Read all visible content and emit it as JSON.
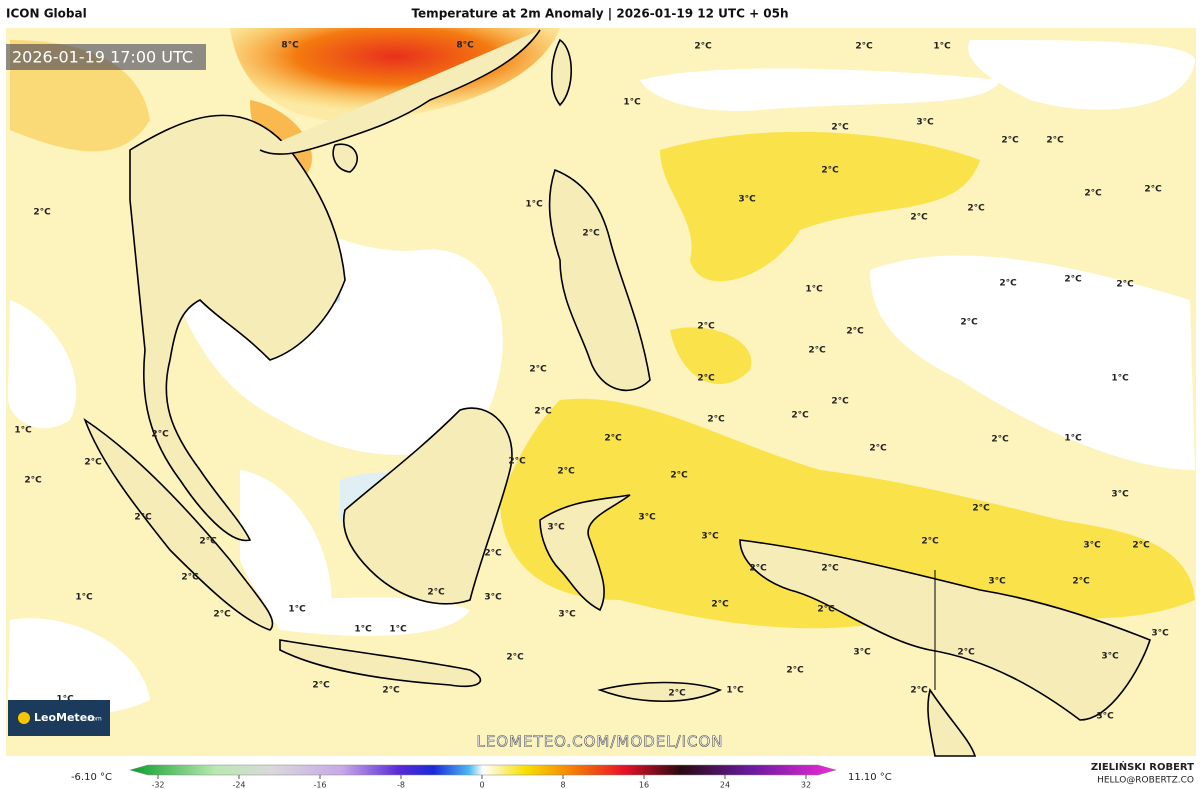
{
  "header": {
    "model": "ICON Global",
    "title": "Temperature at 2m Anomaly | 2026-01-19 12 UTC + 05h"
  },
  "timestamp": "2026-01-19 17:00 UTC",
  "contour_labels": [
    "8°C",
    "8°C",
    "2°C",
    "2°C",
    "1°C",
    "1°C",
    "3°C",
    "2°C",
    "2°C",
    "2°C",
    "2°C",
    "2°C",
    "2°C",
    "3°C",
    "2°C",
    "2°C",
    "1°C",
    "2°C",
    "2°C",
    "1°C",
    "2°C",
    "2°C",
    "2°C",
    "2°C",
    "2°C",
    "2°C",
    "2°C",
    "2°C",
    "2°C",
    "1°C",
    "2°C",
    "2°C",
    "2°C",
    "2°C",
    "1°C",
    "2°C",
    "2°C",
    "2°C",
    "1°C",
    "2°C",
    "2°C",
    "2°C",
    "2°C",
    "2°C",
    "2°C",
    "3°C",
    "2°C",
    "3°C",
    "3°C",
    "2°C",
    "3°C",
    "2°C",
    "2°C",
    "2°C",
    "3°C",
    "2°C",
    "2°C",
    "2°C",
    "2°C",
    "3°C",
    "2°C",
    "2°C",
    "3°C",
    "1°C",
    "1°C",
    "2°C",
    "2°C",
    "2°C",
    "3°C",
    "1°C",
    "1°C",
    "3°C",
    "3°C",
    "2°C",
    "3°C",
    "2°C",
    "2°C",
    "2°C",
    "2°C",
    "2°C",
    "1°C",
    "2°C",
    "1°C",
    "3°C"
  ],
  "watermark": "LEOMETEO.COM/MODEL/ICON",
  "logo": {
    "name": "LeoMeteo",
    "suffix": ".com"
  },
  "author": {
    "name": "ZIELIŃSKI ROBERT",
    "email": "HELLO@ROBERTZ.CO"
  },
  "colorbar": {
    "min_label": "-6.10 °C",
    "max_label": "11.10 °C",
    "ticks": [
      -32,
      -24,
      -16,
      -8,
      0,
      8,
      16,
      24,
      32
    ]
  }
}
